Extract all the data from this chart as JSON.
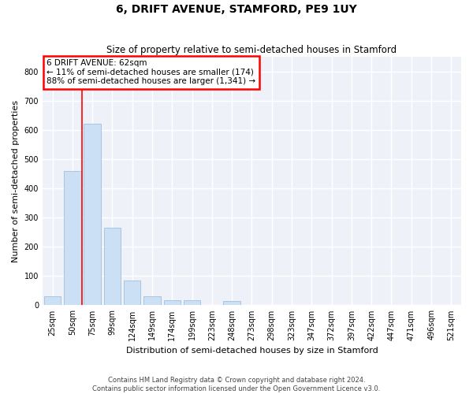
{
  "title": "6, DRIFT AVENUE, STAMFORD, PE9 1UY",
  "subtitle": "Size of property relative to semi-detached houses in Stamford",
  "xlabel": "Distribution of semi-detached houses by size in Stamford",
  "ylabel": "Number of semi-detached properties",
  "footer_line1": "Contains HM Land Registry data © Crown copyright and database right 2024.",
  "footer_line2": "Contains public sector information licensed under the Open Government Licence v3.0.",
  "categories": [
    "25sqm",
    "50sqm",
    "75sqm",
    "99sqm",
    "124sqm",
    "149sqm",
    "174sqm",
    "199sqm",
    "223sqm",
    "248sqm",
    "273sqm",
    "298sqm",
    "323sqm",
    "347sqm",
    "372sqm",
    "397sqm",
    "422sqm",
    "447sqm",
    "471sqm",
    "496sqm",
    "521sqm"
  ],
  "values": [
    30,
    460,
    620,
    265,
    85,
    30,
    18,
    18,
    0,
    15,
    0,
    0,
    0,
    0,
    0,
    0,
    0,
    0,
    0,
    0,
    0
  ],
  "bar_color": "#cce0f5",
  "bar_edge_color": "#a8c4e0",
  "ylim": [
    0,
    850
  ],
  "yticks": [
    0,
    100,
    200,
    300,
    400,
    500,
    600,
    700,
    800
  ],
  "property_label": "6 DRIFT AVENUE: 62sqm",
  "pct_smaller": 11,
  "pct_larger": 88,
  "count_smaller": 174,
  "count_larger": "1,341",
  "vline_x": 1.5,
  "background_color": "#eef2f8",
  "grid_color": "#ffffff",
  "title_fontsize": 10,
  "subtitle_fontsize": 8.5,
  "axis_label_fontsize": 8,
  "tick_fontsize": 7,
  "annotation_fontsize": 7.5
}
